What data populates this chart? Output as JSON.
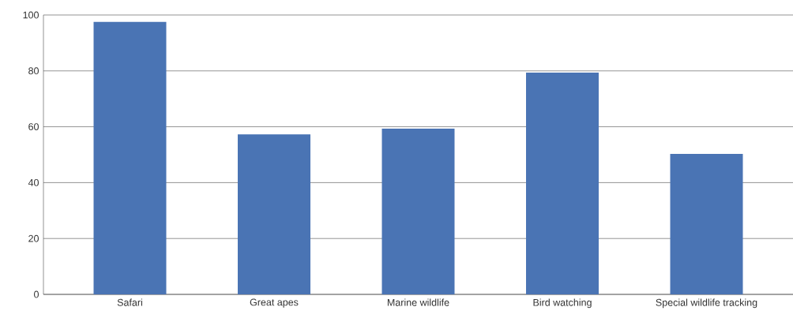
{
  "chart_data": {
    "type": "bar",
    "categories": [
      "Safari",
      "Great apes",
      "Marine wildlife",
      "Bird watching",
      "Special wildlife tracking"
    ],
    "values": [
      97.5,
      57.3,
      59.3,
      79.4,
      50.3
    ],
    "color": "#4a74b4",
    "ylim": [
      0,
      100
    ],
    "yticks": [
      0,
      20,
      40,
      60,
      80,
      100
    ],
    "grid": "y"
  }
}
